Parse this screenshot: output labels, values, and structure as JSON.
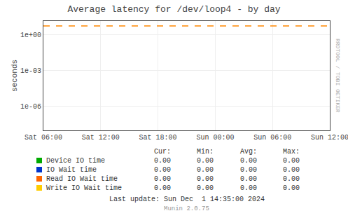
{
  "chart_data": {
    "type": "line",
    "title": "Average latency for /dev/loop4 - by day",
    "y_label": "seconds",
    "categories": [
      "Sat 06:00",
      "Sat 12:00",
      "Sat 18:00",
      "Sun 00:00",
      "Sun 06:00",
      "Sun 12:00"
    ],
    "log": "y",
    "ylim": [
      1e-08,
      14.0
    ],
    "yticks": [
      {
        "value": 1e-06,
        "label": "1e-06"
      },
      {
        "value": 0.001,
        "label": "1e-03"
      },
      {
        "value": 1,
        "label": "1e+00"
      }
    ],
    "grid": true,
    "hline": {
      "value": 5.5,
      "color": "#ff8800",
      "line_style": "dashed"
    },
    "table": {
      "columns": [
        "Cur:",
        "Min:",
        "Avg:",
        "Max:"
      ],
      "rows": [
        {
          "name": "Device IO time",
          "color": "#00aa00",
          "values": [
            0,
            0,
            0,
            0
          ],
          "value_labels": [
            "0.00",
            "0.00",
            "0.00",
            "0.00"
          ]
        },
        {
          "name": "IO Wait time",
          "color": "#0033cc",
          "values": [
            0,
            0,
            0,
            0
          ],
          "value_labels": [
            "0.00",
            "0.00",
            "0.00",
            "0.00"
          ]
        },
        {
          "name": "Read IO Wait time",
          "color": "#ff6600",
          "values": [
            0,
            0,
            0,
            0
          ],
          "value_labels": [
            "0.00",
            "0.00",
            "0.00",
            "0.00"
          ]
        },
        {
          "name": "Write IO Wait time",
          "color": "#ffcc00",
          "values": [
            0,
            0,
            0,
            0
          ],
          "value_labels": [
            "0.00",
            "0.00",
            "0.00",
            "0.00"
          ]
        }
      ]
    },
    "annotations": [
      "Last update: Sun Dec  1 14:35:00 2024",
      "Munin 2.0.75",
      "RRDTOOL / TOBI OETIKER"
    ]
  }
}
